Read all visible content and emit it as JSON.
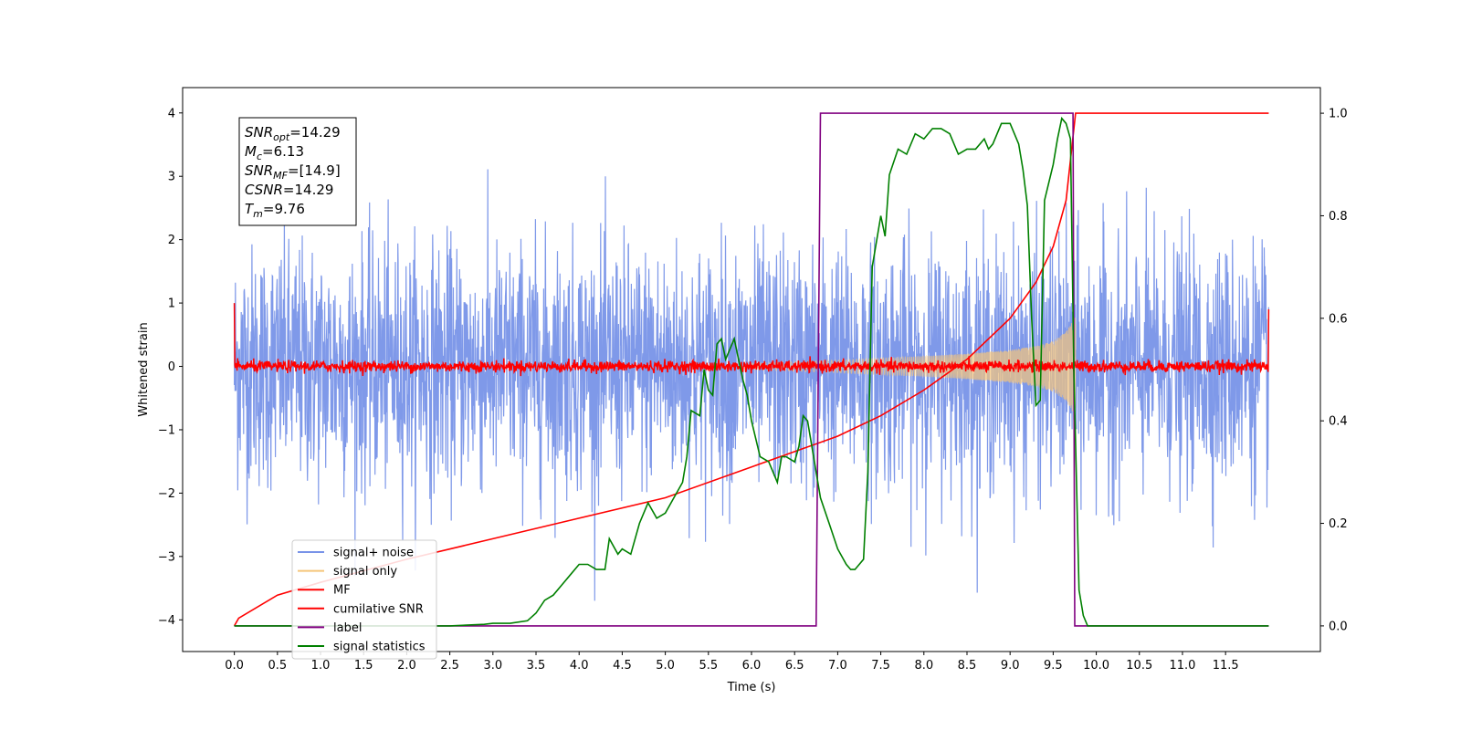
{
  "chart_data": {
    "type": "line",
    "xlabel": "Time (s)",
    "ylabel": "Whitened strain",
    "xlim": [
      -0.6,
      12.6
    ],
    "ylim": [
      -4.5,
      4.4
    ],
    "y2lim": [
      -0.05,
      1.05
    ],
    "x_ticks": [
      0.0,
      0.5,
      1.0,
      1.5,
      2.0,
      2.5,
      3.0,
      3.5,
      4.0,
      4.5,
      5.0,
      5.5,
      6.0,
      6.5,
      7.0,
      7.5,
      8.0,
      8.5,
      9.0,
      9.5,
      10.0,
      10.5,
      11.0,
      11.5
    ],
    "x_tick_labels": [
      "0.0",
      "0.5",
      "1.0",
      "1.5",
      "2.0",
      "2.5",
      "3.0",
      "3.5",
      "4.0",
      "4.5",
      "5.0",
      "5.5",
      "6.0",
      "6.5",
      "7.0",
      "7.5",
      "8.0",
      "8.5",
      "9.0",
      "9.5",
      "10.0",
      "10.5",
      "11.0",
      "11.5"
    ],
    "y_ticks": [
      -4,
      -3,
      -2,
      -1,
      0,
      1,
      2,
      3,
      4
    ],
    "y_tick_labels": [
      "−4",
      "−3",
      "−2",
      "−1",
      "0",
      "1",
      "2",
      "3",
      "4"
    ],
    "y2_ticks": [
      0.0,
      0.2,
      0.4,
      0.6,
      0.8,
      1.0
    ],
    "y2_tick_labels": [
      "0.0",
      "0.2",
      "0.4",
      "0.6",
      "0.8",
      "1.0"
    ],
    "grid": false,
    "legend_position": "lower-left",
    "legend": [
      {
        "label": "signal+ noise",
        "color": "#7893e8"
      },
      {
        "label": "signal only",
        "color": "#f5c57a"
      },
      {
        "label": "MF",
        "color": "#ff0000"
      },
      {
        "label": "cumilative SNR",
        "color": "#ff0000"
      },
      {
        "label": "label",
        "color": "#800080"
      },
      {
        "label": "signal statistics",
        "color": "#008000"
      }
    ],
    "annotation": [
      {
        "base": "SNR",
        "sub": "opt",
        "value": "=14.29"
      },
      {
        "base": "M",
        "sub": "c",
        "value": "=6.13"
      },
      {
        "base": "SNR",
        "sub": "MF",
        "value": "=[14.9]"
      },
      {
        "base": "CSNR",
        "sub": "",
        "value": "=14.29"
      },
      {
        "base": "T",
        "sub": "m",
        "value": "=9.76"
      }
    ],
    "series": [
      {
        "name": "signal+ noise",
        "axis": "left",
        "color": "#7893e8",
        "x_range": [
          0.0,
          12.0
        ],
        "typical_amplitude": [
          -2.0,
          2.0
        ],
        "extremes": {
          "max": 3.3,
          "min": -3.7
        }
      },
      {
        "name": "signal only",
        "axis": "left",
        "color": "#f5c57a",
        "chirp_envelope": {
          "x": [
            6.0,
            7.0,
            8.0,
            8.5,
            9.0,
            9.3,
            9.5,
            9.65,
            9.76
          ],
          "y": [
            0.05,
            0.1,
            0.16,
            0.2,
            0.26,
            0.32,
            0.4,
            0.55,
            0.8
          ]
        }
      },
      {
        "name": "MF",
        "axis": "left",
        "color": "#ff0000",
        "x_range": [
          0.0,
          12.0
        ],
        "edge_values": {
          "start": 1.0,
          "end": 0.9
        },
        "typical_amplitude": [
          -0.1,
          0.1
        ]
      },
      {
        "name": "cumilative SNR",
        "axis": "right",
        "color": "#ff0000",
        "x": [
          0.0,
          0.05,
          0.5,
          1.0,
          2.0,
          3.0,
          4.0,
          5.0,
          6.0,
          6.5,
          7.0,
          7.5,
          8.0,
          8.5,
          9.0,
          9.3,
          9.5,
          9.65,
          9.76,
          12.0
        ],
        "y": [
          0.0,
          0.015,
          0.06,
          0.085,
          0.13,
          0.17,
          0.21,
          0.25,
          0.31,
          0.34,
          0.37,
          0.41,
          0.46,
          0.52,
          0.6,
          0.67,
          0.74,
          0.83,
          1.0,
          1.0
        ]
      },
      {
        "name": "label",
        "axis": "right",
        "color": "#800080",
        "x": [
          0.0,
          6.75,
          6.8,
          9.73,
          9.75,
          9.78,
          12.0
        ],
        "y": [
          0.0,
          0.0,
          1.0,
          1.0,
          0.0,
          0.0,
          0.0
        ]
      },
      {
        "name": "signal statistics",
        "axis": "right",
        "color": "#008000",
        "x": [
          0.0,
          2.0,
          2.5,
          2.9,
          3.0,
          3.2,
          3.4,
          3.5,
          3.6,
          3.7,
          3.8,
          3.9,
          4.0,
          4.1,
          4.2,
          4.3,
          4.35,
          4.45,
          4.5,
          4.6,
          4.7,
          4.8,
          4.9,
          5.0,
          5.1,
          5.2,
          5.25,
          5.3,
          5.4,
          5.45,
          5.5,
          5.55,
          5.6,
          5.65,
          5.7,
          5.75,
          5.8,
          5.85,
          5.9,
          5.95,
          6.0,
          6.1,
          6.2,
          6.3,
          6.35,
          6.4,
          6.5,
          6.55,
          6.6,
          6.65,
          6.7,
          6.8,
          6.9,
          7.0,
          7.1,
          7.15,
          7.2,
          7.3,
          7.35,
          7.4,
          7.5,
          7.55,
          7.6,
          7.7,
          7.8,
          7.9,
          8.0,
          8.1,
          8.2,
          8.3,
          8.4,
          8.5,
          8.6,
          8.7,
          8.75,
          8.8,
          8.9,
          9.0,
          9.05,
          9.1,
          9.15,
          9.2,
          9.25,
          9.3,
          9.35,
          9.4,
          9.5,
          9.55,
          9.6,
          9.65,
          9.7,
          9.74,
          9.8,
          9.85,
          9.9,
          10.0,
          12.0
        ],
        "y": [
          0.0,
          0.0,
          0.0,
          0.003,
          0.005,
          0.005,
          0.01,
          0.025,
          0.05,
          0.06,
          0.08,
          0.1,
          0.12,
          0.12,
          0.11,
          0.11,
          0.17,
          0.14,
          0.15,
          0.14,
          0.2,
          0.24,
          0.21,
          0.22,
          0.25,
          0.28,
          0.33,
          0.42,
          0.41,
          0.5,
          0.46,
          0.45,
          0.55,
          0.56,
          0.52,
          0.54,
          0.56,
          0.52,
          0.48,
          0.45,
          0.4,
          0.33,
          0.32,
          0.28,
          0.33,
          0.33,
          0.32,
          0.35,
          0.41,
          0.4,
          0.35,
          0.25,
          0.2,
          0.15,
          0.12,
          0.11,
          0.11,
          0.13,
          0.3,
          0.7,
          0.8,
          0.76,
          0.88,
          0.93,
          0.92,
          0.96,
          0.95,
          0.97,
          0.97,
          0.96,
          0.92,
          0.93,
          0.93,
          0.95,
          0.93,
          0.94,
          0.98,
          0.98,
          0.96,
          0.94,
          0.89,
          0.82,
          0.6,
          0.43,
          0.44,
          0.83,
          0.9,
          0.95,
          0.99,
          0.98,
          0.95,
          0.5,
          0.07,
          0.02,
          0.0,
          0.0,
          0.0
        ]
      }
    ]
  }
}
